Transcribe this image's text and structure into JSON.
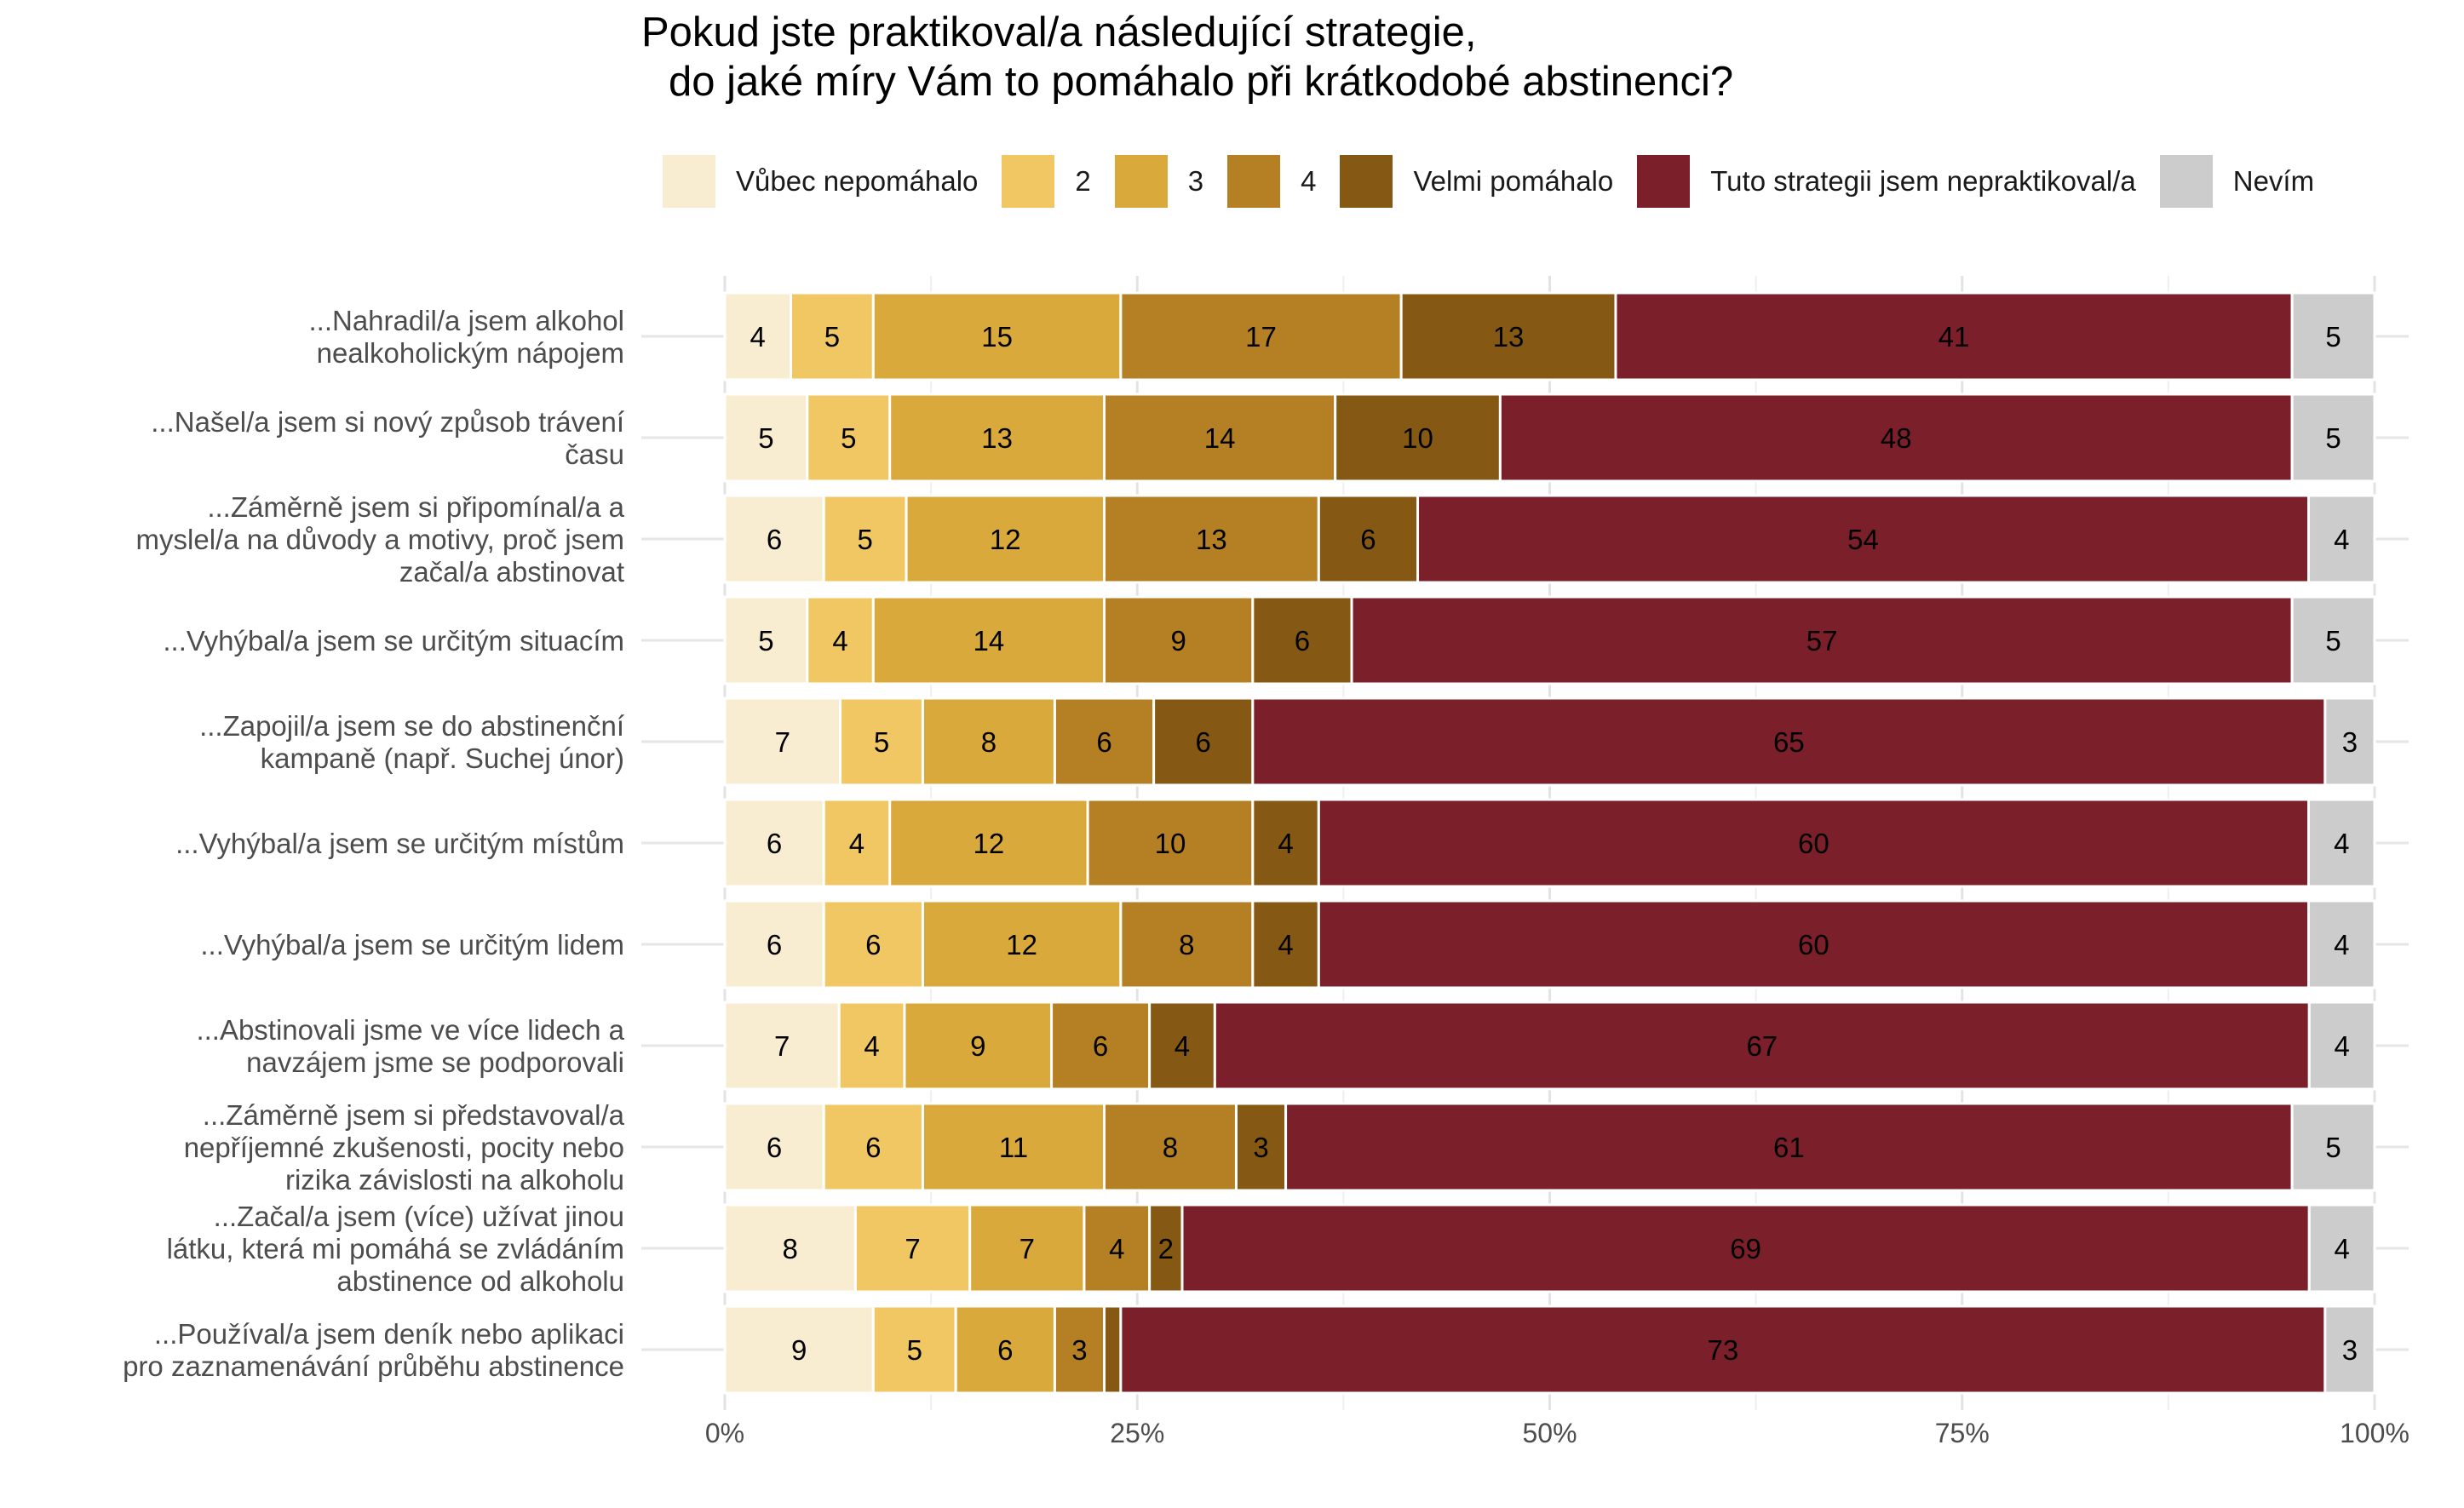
{
  "chart_data": {
    "type": "bar",
    "orientation": "horizontal",
    "stacked": true,
    "normalized": true,
    "title_lines": [
      "Pokud jste praktikoval/a následující strategie,",
      "do jaké míry Vám to pomáhalo při krátkodobé abstinenci?"
    ],
    "xlabel": "",
    "ylabel": "",
    "xlim": [
      0,
      100
    ],
    "x_ticks": [
      "0%",
      "25%",
      "50%",
      "75%",
      "100%"
    ],
    "grid": true,
    "legend_position": "top",
    "categories": [
      "...Nahradil/a jsem alkohol\nnealkoholickým nápojem",
      "...Našel/a jsem si nový způsob trávení\nčasu",
      "...Záměrně jsem si připomínal/a a\nmyslel/a na důvody a motivy, proč jsem\nzačal/a abstinovat",
      "...Vyhýbal/a jsem se určitým situacím",
      "...Zapojil/a jsem se do abstinenční\nkampaně (např. Suchej únor)",
      "...Vyhýbal/a jsem se určitým místům",
      "...Vyhýbal/a jsem se určitým lidem",
      "...Abstinovali jsme ve více lidech a\nnavzájem jsme se podporovali",
      "...Záměrně jsem si představoval/a\nnepříjemné zkušenosti, pocity nebo\nrizika závislosti na alkoholu",
      "...Začal/a jsem (více) užívat jinou\nlátku, která mi pomáhá se zvládáním\nabstinence od alkoholu",
      "...Používal/a jsem deník nebo aplikaci\npro zaznamenávání průběhu abstinence"
    ],
    "series": [
      {
        "name": "Vůbec nepomáhalo",
        "color": "#f8edd0",
        "label_color": "#000000",
        "values": [
          4,
          5,
          6,
          5,
          7,
          6,
          6,
          7,
          6,
          8,
          9
        ]
      },
      {
        "name": "2",
        "color": "#f0c763",
        "label_color": "#000000",
        "values": [
          5,
          5,
          5,
          4,
          5,
          4,
          6,
          4,
          6,
          7,
          5
        ]
      },
      {
        "name": "3",
        "color": "#d9a93b",
        "label_color": "#000000",
        "values": [
          15,
          13,
          12,
          14,
          8,
          12,
          12,
          9,
          11,
          7,
          6
        ]
      },
      {
        "name": "4",
        "color": "#b58024",
        "label_color": "#000000",
        "values": [
          17,
          14,
          13,
          9,
          6,
          10,
          8,
          6,
          8,
          4,
          3
        ]
      },
      {
        "name": "Velmi pomáhalo",
        "color": "#855914",
        "label_color": "#000000",
        "values": [
          13,
          10,
          6,
          6,
          6,
          4,
          4,
          4,
          3,
          2,
          1
        ]
      },
      {
        "name": "Tuto strategii jsem nepraktikoval/a",
        "color": "#7b1f2a",
        "label_color": "#000000",
        "values": [
          41,
          48,
          54,
          57,
          65,
          60,
          60,
          67,
          61,
          69,
          73
        ]
      },
      {
        "name": "Nevím",
        "color": "#cccccc",
        "label_color": "#000000",
        "values": [
          5,
          5,
          4,
          5,
          3,
          4,
          4,
          4,
          5,
          4,
          3
        ]
      }
    ],
    "data_labels": [
      [
        "4",
        "5",
        "15",
        "17",
        "13",
        "41",
        "5"
      ],
      [
        "5",
        "5",
        "13",
        "14",
        "10",
        "48",
        "5"
      ],
      [
        "6",
        "5",
        "12",
        "13",
        "6",
        "54",
        "4"
      ],
      [
        "5",
        "4",
        "14",
        "9",
        "6",
        "57",
        "5"
      ],
      [
        "7",
        "5",
        "8",
        "6",
        "6",
        "65",
        "3"
      ],
      [
        "6",
        "4",
        "12",
        "10",
        "4",
        "60",
        "4"
      ],
      [
        "6",
        "6",
        "12",
        "8",
        "4",
        "60",
        "4"
      ],
      [
        "7",
        "4",
        "9",
        "6",
        "4",
        "67",
        "4"
      ],
      [
        "6",
        "6",
        "11",
        "8",
        "3",
        "61",
        "5"
      ],
      [
        "8",
        "7",
        "7",
        "4",
        "2",
        "69",
        "4"
      ],
      [
        "9",
        "5",
        "6",
        "3",
        "",
        "73",
        "3"
      ]
    ]
  }
}
